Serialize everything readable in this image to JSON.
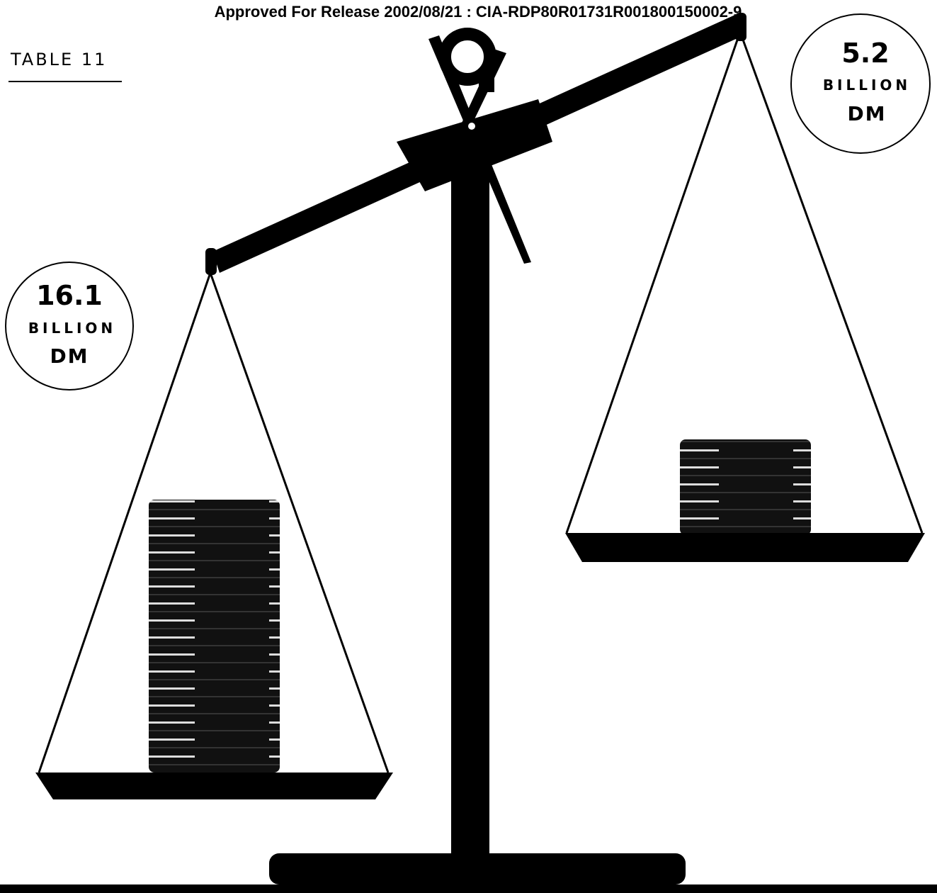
{
  "header": {
    "release_line": "Approved For Release 2002/08/21 : CIA-RDP80R01731R001800150002-9",
    "table_label": "TABLE 11"
  },
  "left_pan": {
    "amount": "16.1",
    "unit": "BILLION",
    "currency": "DM"
  },
  "right_pan": {
    "amount": "5.2",
    "unit": "BILLION",
    "currency": "DM"
  }
}
